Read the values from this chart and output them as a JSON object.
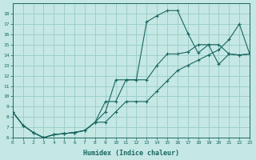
{
  "bg_color": "#c5e8e4",
  "grid_color": "#9ecfcb",
  "line_color": "#1a6660",
  "xlabel": "Humidex (Indice chaleur)",
  "xlim": [
    0,
    23
  ],
  "ylim": [
    6,
    19
  ],
  "xticks": [
    0,
    1,
    2,
    3,
    4,
    5,
    6,
    7,
    8,
    9,
    10,
    11,
    12,
    13,
    14,
    15,
    16,
    17,
    18,
    19,
    20,
    21,
    22,
    23
  ],
  "yticks": [
    6,
    7,
    8,
    9,
    10,
    11,
    12,
    13,
    14,
    15,
    16,
    17,
    18
  ],
  "curve1_x": [
    0,
    1,
    2,
    3,
    4,
    5,
    6,
    7,
    8,
    9,
    10,
    11,
    12,
    13,
    14,
    15,
    16,
    17,
    18,
    19,
    20,
    21,
    22,
    23
  ],
  "curve1_y": [
    8.5,
    7.2,
    6.5,
    6.0,
    6.3,
    6.4,
    6.5,
    6.7,
    7.5,
    8.5,
    11.6,
    11.6,
    11.6,
    17.2,
    17.8,
    18.3,
    18.3,
    16.1,
    14.2,
    15.0,
    15.0,
    14.1,
    14.0,
    14.1
  ],
  "curve2_x": [
    0,
    1,
    2,
    3,
    4,
    5,
    6,
    7,
    8,
    9,
    10,
    11,
    12,
    13,
    14,
    15,
    16,
    17,
    18,
    19,
    20,
    21,
    22,
    23
  ],
  "curve2_y": [
    8.5,
    7.2,
    6.5,
    6.0,
    6.3,
    6.4,
    6.5,
    6.7,
    7.5,
    9.5,
    9.5,
    11.6,
    11.6,
    11.6,
    13.0,
    14.1,
    14.1,
    14.3,
    15.0,
    15.0,
    13.1,
    14.1,
    14.0,
    14.1
  ],
  "curve3_x": [
    0,
    1,
    2,
    3,
    4,
    5,
    6,
    7,
    8,
    9,
    10,
    11,
    12,
    13,
    14,
    15,
    16,
    17,
    18,
    19,
    20,
    21,
    22,
    23
  ],
  "curve3_y": [
    8.5,
    7.2,
    6.5,
    6.0,
    6.3,
    6.4,
    6.5,
    6.7,
    7.5,
    7.5,
    8.5,
    9.5,
    9.5,
    9.5,
    10.5,
    11.5,
    12.5,
    13.0,
    13.5,
    14.0,
    14.5,
    15.5,
    17.0,
    14.1
  ]
}
